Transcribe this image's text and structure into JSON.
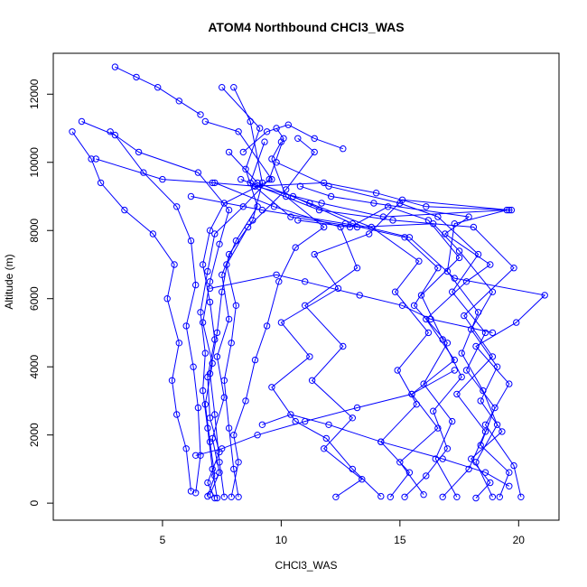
{
  "chart_data": {
    "type": "line",
    "title": "ATOM4 Northbound CHCl3_WAS",
    "xlabel": "CHCl3_WAS",
    "ylabel": "Altitude (m)",
    "xlim": [
      0.4,
      21.7
    ],
    "ylim": [
      -500,
      13200
    ],
    "x_ticks": [
      5,
      10,
      15,
      20
    ],
    "y_ticks": [
      0,
      2000,
      4000,
      6000,
      8000,
      10000,
      12000
    ],
    "grid": false,
    "legend": "none",
    "marker": "open-circle",
    "color": "#0000ff",
    "series": [
      {
        "points": [
          [
            7.3,
            150
          ],
          [
            7.1,
            1000
          ],
          [
            6.9,
            2200
          ],
          [
            6.7,
            3300
          ],
          [
            6.8,
            4400
          ],
          [
            6.6,
            5600
          ],
          [
            6.9,
            6800
          ],
          [
            7.2,
            7900
          ],
          [
            8.4,
            8700
          ],
          [
            9.5,
            9500
          ],
          [
            10.1,
            10700
          ],
          [
            9.8,
            11000
          ]
        ]
      },
      {
        "points": [
          [
            7.6,
            180
          ],
          [
            7.4,
            1200
          ],
          [
            7.2,
            2600
          ],
          [
            7.0,
            3800
          ],
          [
            7.3,
            5000
          ],
          [
            7.5,
            6200
          ],
          [
            7.8,
            7300
          ],
          [
            8.8,
            8300
          ],
          [
            9.2,
            9400
          ],
          [
            8.7,
            11200
          ],
          [
            8.0,
            12200
          ]
        ]
      },
      {
        "points": [
          [
            6.4,
            300
          ],
          [
            6.6,
            1400
          ],
          [
            6.5,
            2800
          ],
          [
            6.3,
            4000
          ],
          [
            6.0,
            5200
          ],
          [
            6.4,
            6400
          ],
          [
            6.2,
            7700
          ],
          [
            5.6,
            8700
          ],
          [
            4.2,
            9700
          ],
          [
            3.0,
            10800
          ],
          [
            1.6,
            11200
          ]
        ]
      },
      {
        "points": [
          [
            8.2,
            180
          ],
          [
            8.0,
            1000
          ],
          [
            7.8,
            2200
          ],
          [
            7.6,
            3600
          ],
          [
            7.9,
            4700
          ],
          [
            8.1,
            5800
          ],
          [
            7.7,
            7000
          ],
          [
            8.6,
            8100
          ],
          [
            10.2,
            9200
          ],
          [
            11.4,
            10300
          ],
          [
            10.7,
            10700
          ]
        ]
      },
      {
        "points": [
          [
            6.9,
            200
          ],
          [
            7.2,
            800
          ],
          [
            7.0,
            1800
          ],
          [
            6.8,
            2900
          ],
          [
            7.1,
            4100
          ],
          [
            6.7,
            5300
          ],
          [
            7.0,
            6500
          ],
          [
            7.4,
            7600
          ],
          [
            7.8,
            8600
          ],
          [
            6.5,
            9700
          ],
          [
            4.0,
            10300
          ],
          [
            2.8,
            10900
          ]
        ]
      },
      {
        "points": [
          [
            15.2,
            180
          ],
          [
            16.1,
            800
          ],
          [
            17.0,
            1600
          ],
          [
            16.4,
            2700
          ],
          [
            17.6,
            3700
          ],
          [
            16.8,
            4800
          ],
          [
            15.9,
            6100
          ],
          [
            17.5,
            7200
          ],
          [
            16.2,
            8300
          ],
          [
            14.5,
            8700
          ],
          [
            12.9,
            8100
          ],
          [
            10.7,
            8300
          ]
        ]
      },
      {
        "points": [
          [
            19.2,
            180
          ],
          [
            19.6,
            900
          ],
          [
            18.4,
            1700
          ],
          [
            19.0,
            2800
          ],
          [
            17.8,
            3900
          ],
          [
            18.6,
            5000
          ],
          [
            17.2,
            6200
          ],
          [
            18.3,
            7300
          ],
          [
            16.6,
            8400
          ],
          [
            15.0,
            8800
          ],
          [
            12.0,
            9300
          ],
          [
            9.8,
            10000
          ]
        ]
      },
      {
        "points": [
          [
            12.3,
            180
          ],
          [
            13.4,
            700
          ],
          [
            11.8,
            1600
          ],
          [
            13.0,
            2500
          ],
          [
            11.3,
            3600
          ],
          [
            12.6,
            4600
          ],
          [
            11.0,
            5800
          ],
          [
            13.2,
            6900
          ],
          [
            12.5,
            8100
          ],
          [
            9.7,
            8700
          ],
          [
            7.2,
            9400
          ]
        ]
      },
      {
        "points": [
          [
            16.8,
            180
          ],
          [
            17.9,
            1000
          ],
          [
            18.6,
            2100
          ],
          [
            17.4,
            3200
          ],
          [
            18.9,
            4300
          ],
          [
            17.7,
            5500
          ],
          [
            19.8,
            6900
          ],
          [
            18.1,
            8100
          ],
          [
            14.7,
            8300
          ],
          [
            11.6,
            8600
          ],
          [
            8.3,
            9500
          ]
        ]
      },
      {
        "points": [
          [
            14.6,
            180
          ],
          [
            15.4,
            900
          ],
          [
            14.2,
            1800
          ],
          [
            15.7,
            2900
          ],
          [
            14.9,
            3900
          ],
          [
            16.2,
            5000
          ],
          [
            14.8,
            6200
          ],
          [
            15.8,
            7100
          ],
          [
            13.8,
            8100
          ],
          [
            11.2,
            8800
          ],
          [
            9.0,
            9400
          ],
          [
            7.8,
            10300
          ]
        ]
      },
      {
        "points": [
          [
            20.1,
            180
          ],
          [
            19.8,
            1100
          ],
          [
            18.6,
            2300
          ],
          [
            19.6,
            3500
          ],
          [
            18.2,
            4600
          ],
          [
            19.9,
            5300
          ],
          [
            21.1,
            6100
          ],
          [
            17.3,
            6600
          ],
          [
            15.4,
            7800
          ],
          [
            13.0,
            8200
          ],
          [
            10.5,
            9000
          ]
        ]
      },
      {
        "points": [
          [
            17.4,
            180
          ],
          [
            16.5,
            1300
          ],
          [
            17.2,
            2400
          ],
          [
            16.0,
            3500
          ],
          [
            17.0,
            4700
          ],
          [
            15.6,
            5800
          ],
          [
            16.6,
            6900
          ],
          [
            15.2,
            7800
          ],
          [
            12.7,
            8200
          ],
          [
            9.2,
            8600
          ],
          [
            6.2,
            9000
          ]
        ]
      },
      {
        "points": [
          [
            18.9,
            180
          ],
          [
            18.2,
            1200
          ],
          [
            19.1,
            2300
          ],
          [
            18.5,
            3300
          ],
          [
            17.6,
            4400
          ],
          [
            18.3,
            5600
          ],
          [
            17.0,
            6800
          ],
          [
            17.3,
            8200
          ],
          [
            19.5,
            8600
          ],
          [
            14.3,
            8400
          ],
          [
            11.7,
            8800
          ],
          [
            8.9,
            9300
          ]
        ]
      },
      {
        "points": [
          [
            7.9,
            180
          ],
          [
            8.2,
            1200
          ],
          [
            8.0,
            2000
          ],
          [
            8.5,
            3000
          ],
          [
            8.9,
            4200
          ],
          [
            9.4,
            5200
          ],
          [
            9.9,
            6500
          ],
          [
            10.6,
            7500
          ],
          [
            11.8,
            8100
          ],
          [
            10.2,
            9000
          ],
          [
            9.6,
            10100
          ],
          [
            10.0,
            10600
          ]
        ]
      },
      {
        "points": [
          [
            6.2,
            350
          ],
          [
            6.0,
            1600
          ],
          [
            5.6,
            2600
          ],
          [
            5.4,
            3600
          ],
          [
            5.7,
            4700
          ],
          [
            5.2,
            6000
          ],
          [
            5.5,
            7000
          ],
          [
            4.6,
            7900
          ],
          [
            3.4,
            8600
          ],
          [
            2.4,
            9400
          ],
          [
            2.0,
            10100
          ],
          [
            1.2,
            10900
          ]
        ]
      },
      {
        "points": [
          [
            7.0,
            250
          ],
          [
            7.4,
            900
          ],
          [
            7.1,
            1900
          ],
          [
            7.6,
            3100
          ],
          [
            7.3,
            4300
          ],
          [
            7.8,
            5400
          ],
          [
            7.5,
            6700
          ],
          [
            8.1,
            7700
          ],
          [
            9.0,
            8700
          ],
          [
            8.5,
            9800
          ],
          [
            9.1,
            11000
          ],
          [
            7.5,
            12200
          ]
        ]
      },
      {
        "points": [
          [
            14.2,
            200
          ],
          [
            13.0,
            1000
          ],
          [
            11.9,
            1900
          ],
          [
            10.6,
            2400
          ],
          [
            9.6,
            3400
          ],
          [
            11.2,
            4300
          ],
          [
            10.0,
            5300
          ],
          [
            12.4,
            6300
          ],
          [
            11.4,
            7300
          ],
          [
            13.7,
            7900
          ],
          [
            15.1,
            8900
          ],
          [
            19.6,
            8600
          ]
        ]
      },
      {
        "points": [
          [
            16.0,
            250
          ],
          [
            15.0,
            1200
          ],
          [
            16.6,
            2200
          ],
          [
            15.5,
            3200
          ],
          [
            17.3,
            4200
          ],
          [
            16.1,
            5400
          ],
          [
            17.8,
            6500
          ],
          [
            18.8,
            7000
          ],
          [
            16.9,
            7900
          ],
          [
            17.9,
            8400
          ],
          [
            13.9,
            8800
          ],
          [
            12.1,
            9000
          ],
          [
            10.8,
            9300
          ]
        ]
      },
      {
        "points": [
          [
            7.2,
            150
          ],
          [
            6.9,
            600
          ],
          [
            7.4,
            1500
          ],
          [
            7.0,
            2500
          ],
          [
            6.9,
            3700
          ],
          [
            7.2,
            4800
          ],
          [
            7.0,
            5900
          ],
          [
            6.7,
            7000
          ],
          [
            7.0,
            8000
          ],
          [
            7.6,
            8800
          ],
          [
            9.6,
            9500
          ],
          [
            8.2,
            10900
          ],
          [
            6.8,
            11200
          ]
        ]
      },
      {
        "points": [
          [
            18.2,
            150
          ],
          [
            18.8,
            600
          ],
          [
            18.0,
            1300
          ],
          [
            19.3,
            2100
          ],
          [
            18.4,
            3000
          ],
          [
            19.1,
            4000
          ],
          [
            18.0,
            5100
          ],
          [
            18.9,
            6200
          ],
          [
            17.5,
            7400
          ],
          [
            16.4,
            8200
          ],
          [
            13.2,
            8100
          ],
          [
            10.4,
            8400
          ],
          [
            8.7,
            9400
          ],
          [
            9.3,
            10600
          ]
        ]
      },
      {
        "points": [
          [
            9.2,
            2300
          ],
          [
            10.4,
            2600
          ],
          [
            12.0,
            2300
          ],
          [
            14.2,
            1800
          ],
          [
            16.8,
            1300
          ],
          [
            18.6,
            900
          ],
          [
            19.6,
            500
          ]
        ]
      },
      {
        "points": [
          [
            6.4,
            1400
          ],
          [
            7.5,
            1600
          ],
          [
            9.0,
            2000
          ],
          [
            11.0,
            2400
          ],
          [
            13.2,
            2800
          ],
          [
            15.5,
            3200
          ],
          [
            17.3,
            3900
          ]
        ]
      },
      {
        "points": [
          [
            7.0,
            6300
          ],
          [
            9.8,
            6700
          ],
          [
            11.0,
            6500
          ],
          [
            13.3,
            6100
          ],
          [
            15.1,
            5800
          ],
          [
            16.3,
            5400
          ],
          [
            18.9,
            5000
          ]
        ]
      },
      {
        "points": [
          [
            2.2,
            10100
          ],
          [
            5.0,
            9500
          ],
          [
            7.1,
            9400
          ],
          [
            8.9,
            9300
          ],
          [
            11.8,
            9400
          ],
          [
            14.0,
            9100
          ],
          [
            16.1,
            8700
          ],
          [
            19.7,
            8600
          ]
        ]
      },
      {
        "points": [
          [
            3.0,
            12800
          ],
          [
            3.9,
            12500
          ],
          [
            4.8,
            12200
          ],
          [
            5.7,
            11800
          ],
          [
            6.6,
            11400
          ]
        ]
      },
      {
        "points": [
          [
            8.4,
            10300
          ],
          [
            9.4,
            10900
          ],
          [
            10.3,
            11100
          ],
          [
            11.4,
            10700
          ],
          [
            12.6,
            10400
          ]
        ]
      }
    ]
  }
}
